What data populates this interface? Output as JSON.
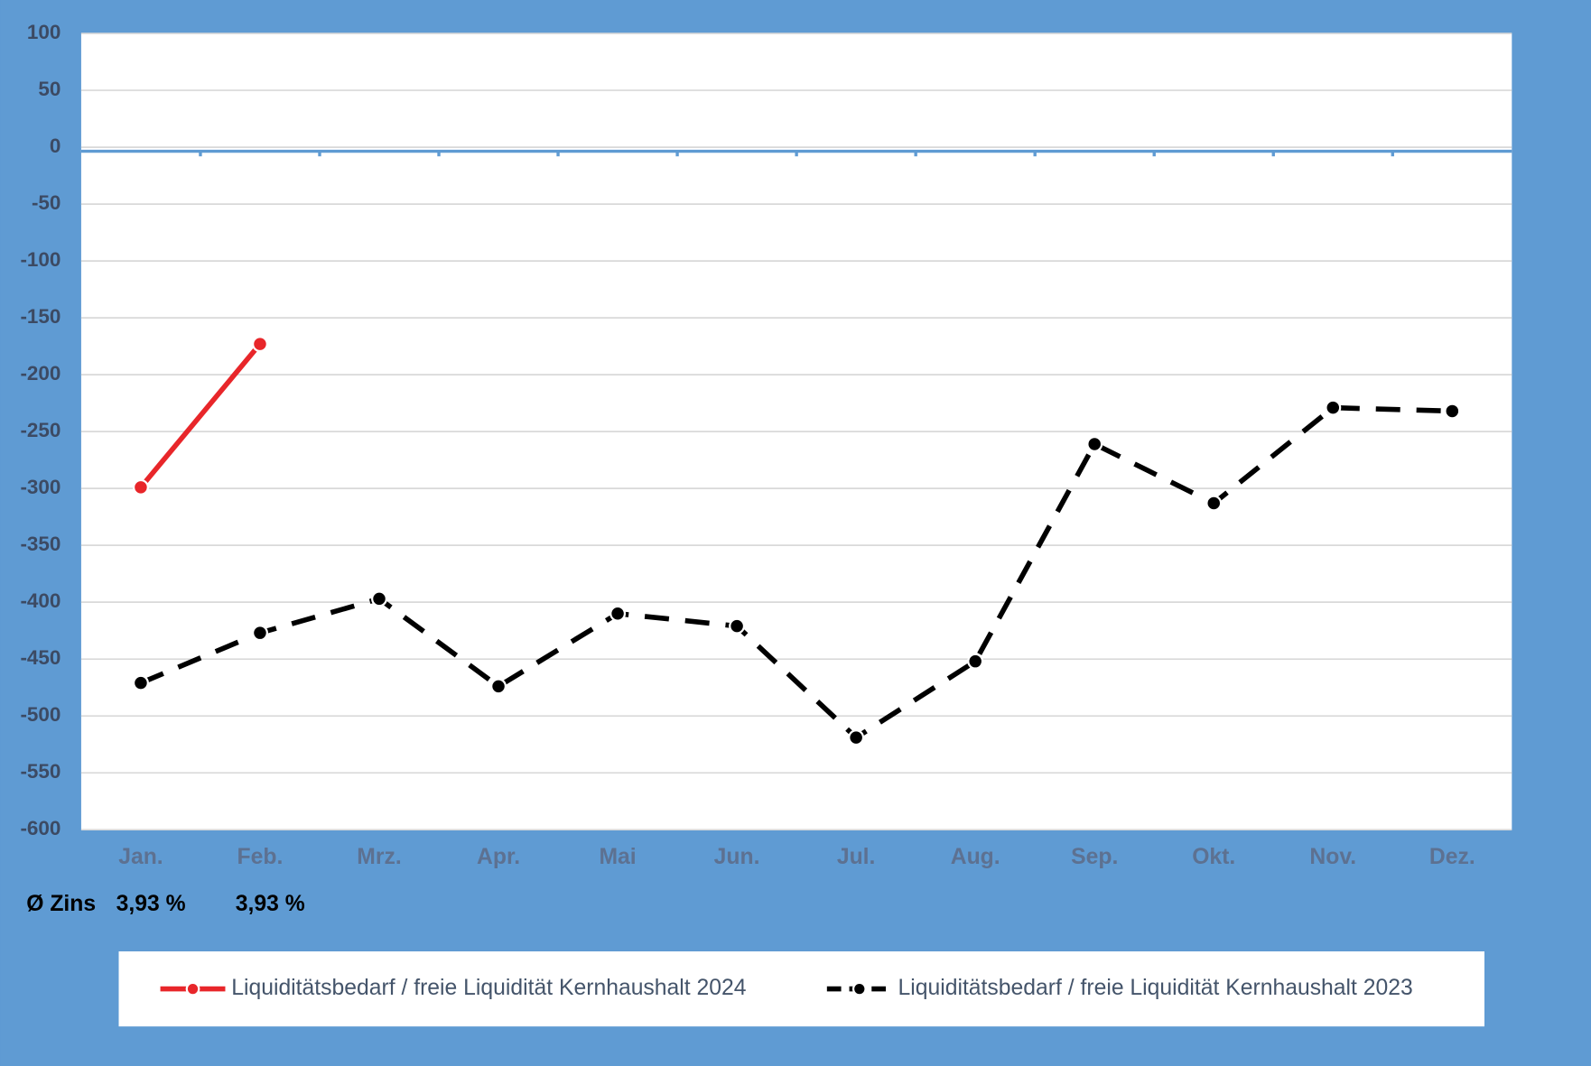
{
  "chart_data": {
    "type": "line",
    "categories": [
      "Jan.",
      "Feb.",
      "Mrz.",
      "Apr.",
      "Mai",
      "Jun.",
      "Jul.",
      "Aug.",
      "Sep.",
      "Okt.",
      "Nov.",
      "Dez."
    ],
    "series": [
      {
        "name": "Liquiditätsbedarf / freie Liquidität Kernhaushalt 2024",
        "color": "#e8262a",
        "line_style": "solid",
        "values": [
          -299,
          -173,
          null,
          null,
          null,
          null,
          null,
          null,
          null,
          null,
          null,
          null
        ]
      },
      {
        "name": "Liquiditätsbedarf / freie Liquidität Kernhaushalt 2023",
        "color": "#000000",
        "line_style": "dashed",
        "values": [
          -471,
          -427,
          -397,
          -474,
          -410,
          -421,
          -519,
          -452,
          -261,
          -313,
          -229,
          -232
        ]
      }
    ],
    "ylim": [
      -600,
      100
    ],
    "yticks": [
      -600,
      -550,
      -500,
      -450,
      -400,
      -350,
      -300,
      -250,
      -200,
      -150,
      -100,
      -50,
      0,
      50,
      100
    ],
    "grid": true,
    "legend": "bottom",
    "annotation": {
      "label": "Ø Zins",
      "values": [
        "3,93 %",
        "3,93 %"
      ]
    }
  }
}
